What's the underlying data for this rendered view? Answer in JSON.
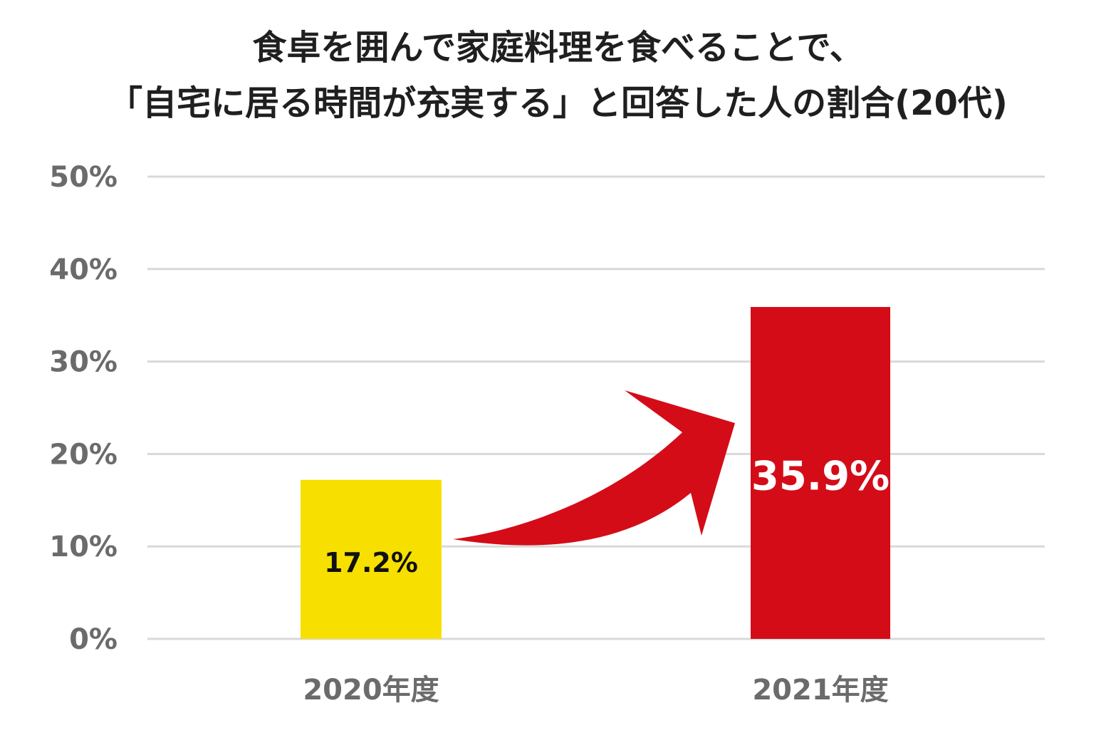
{
  "chart_data": {
    "type": "bar",
    "title_lines": [
      "食卓を囲んで家庭料理を食べることで、",
      "「自宅に居る時間が充実する」と回答した人の割合(20代)"
    ],
    "categories": [
      "2020年度",
      "2021年度"
    ],
    "values": [
      17.2,
      35.9
    ],
    "value_labels": [
      "17.2%",
      "35.9%"
    ],
    "ylim": [
      0,
      50
    ],
    "yticks": [
      0,
      10,
      20,
      30,
      40,
      50
    ],
    "ytick_labels": [
      "0%",
      "10%",
      "20%",
      "30%",
      "40%",
      "50%"
    ],
    "grid": true,
    "legend": "none",
    "annotation": "arrow from 2020年度 bar to 2021年度 bar",
    "colors": {
      "bar_2020": "#f7e000",
      "bar_2021": "#d40c18",
      "arrow": "#d40c18",
      "grid": "#d9d9d9",
      "axis_text": "#6b6b6b"
    }
  }
}
